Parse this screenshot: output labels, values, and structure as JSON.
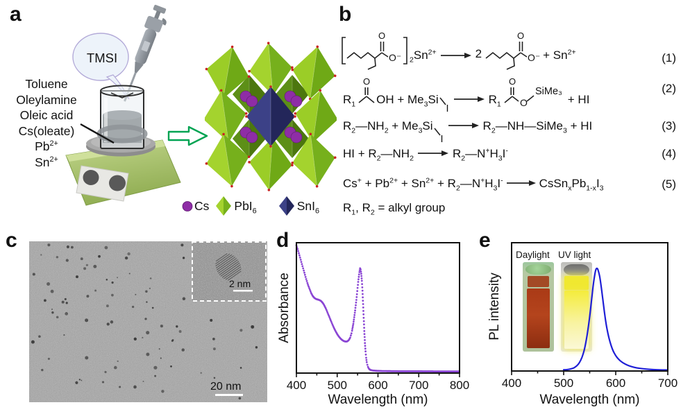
{
  "panel_a": {
    "label": "a",
    "bubble_text": "TMSI",
    "reagents": [
      "Toluene",
      "Oleylamine",
      "Oleic acid",
      "Cs(oleate)",
      "Pb^{2+}",
      "Sn^{2+}"
    ],
    "legend": [
      {
        "icon": "cs-sphere-icon",
        "label": "Cs"
      },
      {
        "icon": "green-octahedron-icon",
        "label": "PbI_{6}"
      },
      {
        "icon": "navy-octahedron-icon",
        "label": "SnI_{6}"
      }
    ],
    "colors": {
      "cs": "#8e2da6",
      "pbi6_light": "#a4d32e",
      "pbi6_dark": "#76b01c",
      "sni6_light": "#3c4187",
      "sni6_dark": "#23265a",
      "vertex_dot": "#c92323",
      "arrow_outline": "#00a352",
      "hotplate_body": "#a9c36c"
    }
  },
  "panel_b": {
    "label": "b",
    "o_label": "O",
    "o_minus": "O⁻",
    "iodine": "I",
    "sime3": "SiMe₃",
    "eq1": {
      "mid": "_{2}Sn^{2+}",
      "coeff": "2",
      "tail": "+ Sn^{2+}",
      "number": "(1)"
    },
    "eq2": {
      "r1a": "R_{1}",
      "mid": "OH + Me_{3}Si",
      "r1b": "R_{1}",
      "tail": "+ HI",
      "number": "(2)"
    },
    "eq3": {
      "left": "R_{2}—NH_{2} + Me_{3}Si",
      "right": "R_{2}—NH—SiMe_{3} + HI",
      "number": "(3)"
    },
    "eq4": {
      "left": "HI + R_{2}—NH_{2}",
      "right": "R_{2}—N^{+}H_{3}I^{-}",
      "number": "(4)"
    },
    "eq5": {
      "left": "Cs^{+} + Pb^{2+} + Sn^{2+} + R_{2}—N^{+}H_{3}I^{-}",
      "right": "CsSn_{x}Pb_{1-x}I_{3}",
      "number": "(5)"
    },
    "note": "R_{1}, R_{2} = alkyl group"
  },
  "panel_c": {
    "label": "c",
    "scalebar_main": "20 nm",
    "scalebar_inset": "2 nm",
    "particle_count": 90
  },
  "panel_d": {
    "label": "d"
  },
  "panel_e": {
    "label": "e",
    "inset_labels": [
      "Daylight",
      "UV light"
    ]
  },
  "chart_data": [
    {
      "id": "absorbance-spectrum",
      "type": "scatter",
      "title": "",
      "xlabel": "Wavelength (nm)",
      "ylabel": "Absorbance",
      "xlim": [
        400,
        800
      ],
      "xticks": [
        400,
        500,
        600,
        700,
        800
      ],
      "ylim": [
        0,
        1.02
      ],
      "grid": false,
      "color": "#8a45d4",
      "points": [
        [
          400,
          1.0
        ],
        [
          404,
          0.96
        ],
        [
          408,
          0.915
        ],
        [
          412,
          0.87
        ],
        [
          416,
          0.825
        ],
        [
          420,
          0.78
        ],
        [
          424,
          0.735
        ],
        [
          428,
          0.695
        ],
        [
          432,
          0.66
        ],
        [
          436,
          0.628
        ],
        [
          440,
          0.603
        ],
        [
          444,
          0.588
        ],
        [
          448,
          0.58
        ],
        [
          452,
          0.576
        ],
        [
          456,
          0.572
        ],
        [
          460,
          0.565
        ],
        [
          464,
          0.552
        ],
        [
          468,
          0.532
        ],
        [
          472,
          0.506
        ],
        [
          476,
          0.476
        ],
        [
          480,
          0.445
        ],
        [
          484,
          0.414
        ],
        [
          488,
          0.383
        ],
        [
          492,
          0.354
        ],
        [
          496,
          0.328
        ],
        [
          500,
          0.305
        ],
        [
          504,
          0.286
        ],
        [
          508,
          0.271
        ],
        [
          512,
          0.259
        ],
        [
          516,
          0.251
        ],
        [
          520,
          0.247
        ],
        [
          524,
          0.247
        ],
        [
          528,
          0.256
        ],
        [
          532,
          0.278
        ],
        [
          536,
          0.322
        ],
        [
          540,
          0.395
        ],
        [
          544,
          0.49
        ],
        [
          548,
          0.6
        ],
        [
          551,
          0.7
        ],
        [
          554,
          0.78
        ],
        [
          556,
          0.82
        ],
        [
          558,
          0.808
        ],
        [
          560,
          0.748
        ],
        [
          562,
          0.645
        ],
        [
          564,
          0.505
        ],
        [
          566,
          0.36
        ],
        [
          568,
          0.235
        ],
        [
          570,
          0.148
        ],
        [
          572,
          0.092
        ],
        [
          575,
          0.052
        ],
        [
          578,
          0.032
        ],
        [
          582,
          0.024
        ],
        [
          588,
          0.02
        ],
        [
          595,
          0.018
        ],
        [
          610,
          0.016
        ],
        [
          630,
          0.015
        ],
        [
          660,
          0.014
        ],
        [
          700,
          0.014
        ],
        [
          750,
          0.013
        ],
        [
          800,
          0.013
        ]
      ]
    },
    {
      "id": "pl-spectrum",
      "type": "line",
      "title": "",
      "xlabel": "Wavelength (nm)",
      "ylabel": "PL intensity",
      "xlim": [
        400,
        700
      ],
      "xticks": [
        400,
        500,
        600,
        700
      ],
      "ylim": [
        0,
        1.25
      ],
      "grid": false,
      "color": "#1f1fd6",
      "peak_nm": 564,
      "points": [
        [
          500,
          0.012
        ],
        [
          505,
          0.013
        ],
        [
          510,
          0.016
        ],
        [
          515,
          0.022
        ],
        [
          520,
          0.032
        ],
        [
          525,
          0.05
        ],
        [
          530,
          0.08
        ],
        [
          535,
          0.132
        ],
        [
          540,
          0.215
        ],
        [
          545,
          0.35
        ],
        [
          550,
          0.53
        ],
        [
          554,
          0.71
        ],
        [
          557,
          0.845
        ],
        [
          560,
          0.945
        ],
        [
          562,
          0.99
        ],
        [
          564,
          1.0
        ],
        [
          566,
          0.985
        ],
        [
          569,
          0.925
        ],
        [
          572,
          0.825
        ],
        [
          575,
          0.705
        ],
        [
          578,
          0.585
        ],
        [
          581,
          0.475
        ],
        [
          585,
          0.365
        ],
        [
          589,
          0.283
        ],
        [
          593,
          0.221
        ],
        [
          597,
          0.176
        ],
        [
          602,
          0.136
        ],
        [
          608,
          0.103
        ],
        [
          614,
          0.08
        ],
        [
          622,
          0.058
        ],
        [
          630,
          0.043
        ],
        [
          640,
          0.031
        ],
        [
          652,
          0.022
        ],
        [
          665,
          0.016
        ],
        [
          680,
          0.012
        ],
        [
          700,
          0.01
        ]
      ]
    }
  ]
}
